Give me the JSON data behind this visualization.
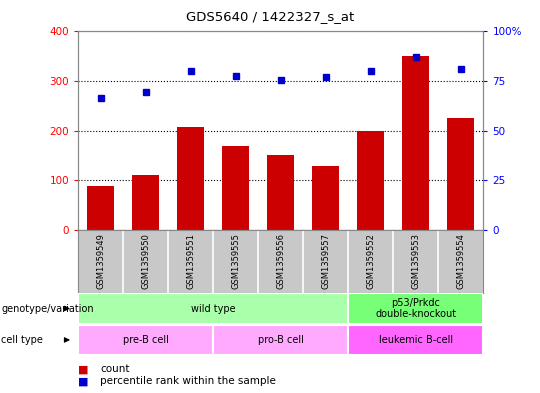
{
  "title": "GDS5640 / 1422327_s_at",
  "samples": [
    "GSM1359549",
    "GSM1359550",
    "GSM1359551",
    "GSM1359555",
    "GSM1359556",
    "GSM1359557",
    "GSM1359552",
    "GSM1359553",
    "GSM1359554"
  ],
  "counts": [
    88,
    110,
    207,
    170,
    150,
    128,
    200,
    350,
    225
  ],
  "percentile_ranks": [
    265,
    278,
    320,
    310,
    302,
    308,
    320,
    348,
    325
  ],
  "ylim": [
    0,
    400
  ],
  "yticks": [
    0,
    100,
    200,
    300,
    400
  ],
  "ytick_labels_left": [
    "0",
    "100",
    "200",
    "300",
    "400"
  ],
  "ytick_labels_right": [
    "0",
    "25",
    "50",
    "75",
    "100%"
  ],
  "bar_color": "#cc0000",
  "dot_color": "#0000cc",
  "sample_bg_color": "#c8c8c8",
  "genotype_groups": [
    {
      "label": "wild type",
      "start": 0,
      "end": 6,
      "color": "#aaffaa"
    },
    {
      "label": "p53/Prkdc\ndouble-knockout",
      "start": 6,
      "end": 9,
      "color": "#77ff77"
    }
  ],
  "cell_type_groups": [
    {
      "label": "pre-B cell",
      "start": 0,
      "end": 3,
      "color": "#ffaaff"
    },
    {
      "label": "pro-B cell",
      "start": 3,
      "end": 6,
      "color": "#ffaaff"
    },
    {
      "label": "leukemic B-cell",
      "start": 6,
      "end": 9,
      "color": "#ff66ff"
    }
  ],
  "legend_count_label": "count",
  "legend_percentile_label": "percentile rank within the sample",
  "genotype_row_label": "genotype/variation",
  "cell_type_row_label": "cell type"
}
